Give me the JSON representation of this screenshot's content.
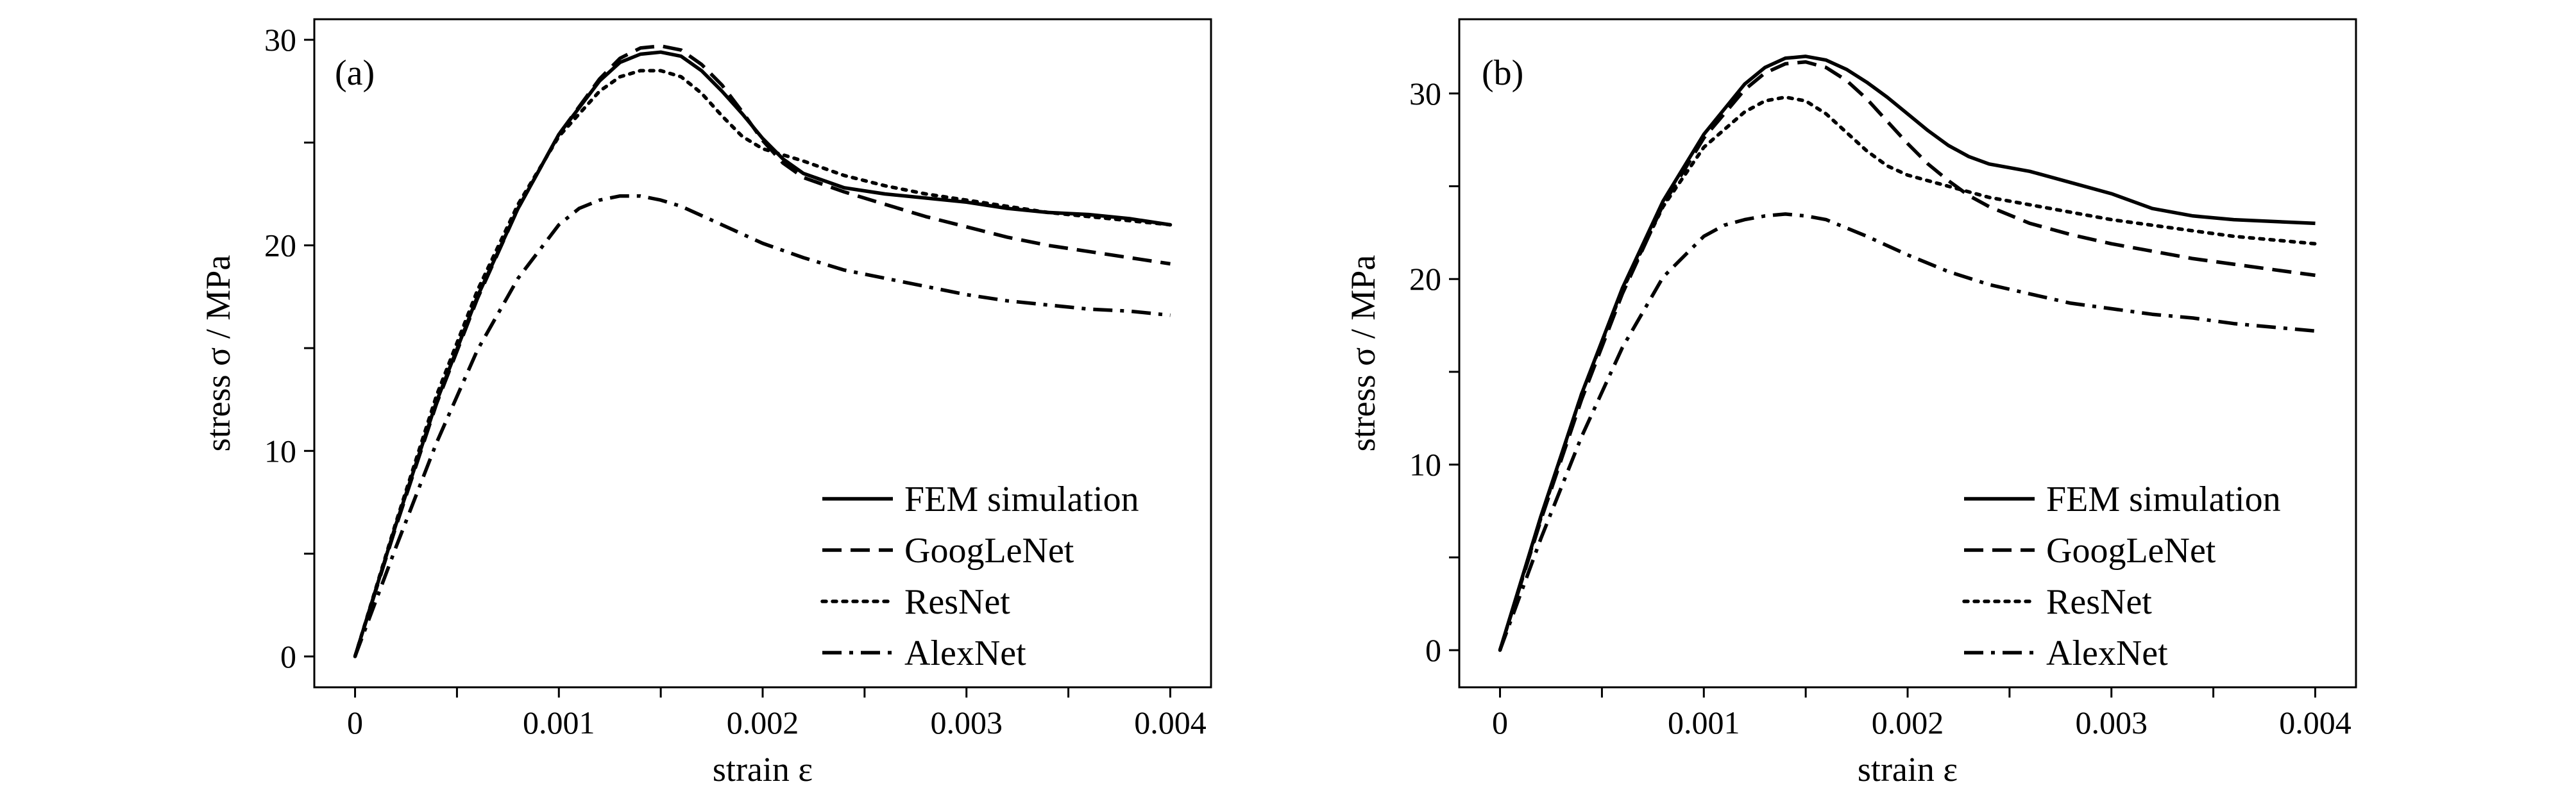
{
  "chart_data": [
    {
      "type": "line",
      "panel_label": "(a)",
      "xlabel": "strain ε",
      "ylabel": "stress σ / MPa",
      "xlim": [
        -0.0002,
        0.0042
      ],
      "ylim": [
        -1.5,
        31
      ],
      "xticks": [
        0,
        0.0005,
        0.001,
        0.0015,
        0.002,
        0.0025,
        0.003,
        0.0035,
        0.004
      ],
      "xtick_labels": [
        "0",
        "",
        "0.001",
        "",
        "0.002",
        "",
        "0.003",
        "",
        "0.004"
      ],
      "yticks": [
        0,
        5,
        10,
        15,
        20,
        25,
        30
      ],
      "ytick_labels": [
        "0",
        "",
        "10",
        "",
        "20",
        "",
        "30"
      ],
      "grid": false,
      "legend_position": "bottom-right",
      "series": [
        {
          "name": "FEM simulation",
          "style": "solid",
          "x": [
            0,
            0.0002,
            0.0004,
            0.0006,
            0.0008,
            0.001,
            0.0012,
            0.0013,
            0.0014,
            0.0015,
            0.0016,
            0.0017,
            0.0018,
            0.0019,
            0.002,
            0.0021,
            0.0022,
            0.0024,
            0.0026,
            0.0028,
            0.003,
            0.0032,
            0.0034,
            0.0036,
            0.0038,
            0.004
          ],
          "y": [
            0,
            6.4,
            12.4,
            17.5,
            21.8,
            25.4,
            28,
            28.9,
            29.3,
            29.4,
            29.2,
            28.5,
            27.5,
            26.4,
            25.2,
            24.2,
            23.5,
            22.8,
            22.5,
            22.3,
            22.1,
            21.8,
            21.6,
            21.5,
            21.3,
            21
          ]
        },
        {
          "name": "GoogLeNet",
          "style": "dashed",
          "x": [
            0,
            0.0002,
            0.0004,
            0.0006,
            0.0008,
            0.001,
            0.0012,
            0.0013,
            0.0014,
            0.0015,
            0.0016,
            0.0017,
            0.0018,
            0.0019,
            0.002,
            0.0021,
            0.0022,
            0.0024,
            0.0026,
            0.0028,
            0.003,
            0.0032,
            0.0034,
            0.0036,
            0.0038,
            0.004
          ],
          "y": [
            0,
            6.3,
            12.3,
            17.4,
            21.8,
            25.4,
            28.1,
            29.1,
            29.6,
            29.7,
            29.5,
            28.8,
            27.8,
            26.5,
            25.1,
            24,
            23.3,
            22.6,
            22,
            21.4,
            20.9,
            20.4,
            20,
            19.7,
            19.4,
            19.1
          ]
        },
        {
          "name": "ResNet",
          "style": "dotted",
          "x": [
            0,
            0.0002,
            0.0004,
            0.0006,
            0.0008,
            0.001,
            0.0012,
            0.0013,
            0.0014,
            0.0015,
            0.0016,
            0.0017,
            0.0018,
            0.0019,
            0.002,
            0.0021,
            0.0022,
            0.0024,
            0.0026,
            0.0028,
            0.003,
            0.0032,
            0.0034,
            0.0036,
            0.0038,
            0.004
          ],
          "y": [
            0,
            6.5,
            12.7,
            17.8,
            22,
            25.3,
            27.5,
            28.2,
            28.5,
            28.5,
            28.2,
            27.4,
            26.3,
            25.3,
            24.7,
            24.4,
            24.1,
            23.4,
            22.9,
            22.5,
            22.2,
            21.9,
            21.6,
            21.4,
            21.2,
            21
          ]
        },
        {
          "name": "AlexNet",
          "style": "dashdot",
          "x": [
            0,
            0.0002,
            0.0004,
            0.0006,
            0.0008,
            0.001,
            0.0011,
            0.0012,
            0.0013,
            0.0014,
            0.0015,
            0.0016,
            0.0018,
            0.002,
            0.0022,
            0.0024,
            0.0026,
            0.0028,
            0.003,
            0.0032,
            0.0034,
            0.0036,
            0.0038,
            0.004
          ],
          "y": [
            0,
            5.3,
            10.4,
            14.9,
            18.4,
            21,
            21.8,
            22.2,
            22.4,
            22.4,
            22.2,
            21.9,
            21,
            20.1,
            19.4,
            18.8,
            18.4,
            18,
            17.6,
            17.3,
            17.1,
            16.9,
            16.8,
            16.6
          ]
        }
      ]
    },
    {
      "type": "line",
      "panel_label": "(b)",
      "xlabel": "strain ε",
      "ylabel": "stress σ / MPa",
      "xlim": [
        -0.0002,
        0.0042
      ],
      "ylim": [
        -2,
        34
      ],
      "xticks": [
        0,
        0.0005,
        0.001,
        0.0015,
        0.002,
        0.0025,
        0.003,
        0.0035,
        0.004
      ],
      "xtick_labels": [
        "0",
        "",
        "0.001",
        "",
        "0.002",
        "",
        "0.003",
        "",
        "0.004"
      ],
      "yticks": [
        0,
        5,
        10,
        15,
        20,
        25,
        30
      ],
      "ytick_labels": [
        "0",
        "",
        "10",
        "",
        "20",
        "",
        "30"
      ],
      "grid": false,
      "legend_position": "bottom-right",
      "series": [
        {
          "name": "FEM simulation",
          "style": "solid",
          "x": [
            0,
            0.0002,
            0.0004,
            0.0006,
            0.0008,
            0.001,
            0.0012,
            0.0013,
            0.0014,
            0.0015,
            0.0016,
            0.0017,
            0.0018,
            0.0019,
            0.002,
            0.0021,
            0.0022,
            0.0023,
            0.0024,
            0.0026,
            0.0028,
            0.003,
            0.0032,
            0.0034,
            0.0036,
            0.0038,
            0.004
          ],
          "y": [
            0,
            7.2,
            13.8,
            19.5,
            24.2,
            27.8,
            30.5,
            31.4,
            31.9,
            32,
            31.8,
            31.3,
            30.6,
            29.8,
            28.9,
            28,
            27.2,
            26.6,
            26.2,
            25.8,
            25.2,
            24.6,
            23.8,
            23.4,
            23.2,
            23.1,
            23
          ]
        },
        {
          "name": "GoogLeNet",
          "style": "dashed",
          "x": [
            0,
            0.0002,
            0.0004,
            0.0006,
            0.0008,
            0.001,
            0.0012,
            0.0013,
            0.0014,
            0.0015,
            0.0016,
            0.0017,
            0.0018,
            0.0019,
            0.002,
            0.0021,
            0.0022,
            0.0023,
            0.0024,
            0.0026,
            0.0028,
            0.003,
            0.0032,
            0.0034,
            0.0036,
            0.0038,
            0.004
          ],
          "y": [
            0,
            7,
            13.5,
            19.2,
            24,
            27.6,
            30.2,
            31.1,
            31.6,
            31.7,
            31.4,
            30.7,
            29.7,
            28.5,
            27.3,
            26.2,
            25.3,
            24.5,
            23.9,
            23,
            22.4,
            21.9,
            21.5,
            21.1,
            20.8,
            20.5,
            20.2
          ]
        },
        {
          "name": "ResNet",
          "style": "dotted",
          "x": [
            0,
            0.0002,
            0.0004,
            0.0006,
            0.0008,
            0.001,
            0.0012,
            0.0013,
            0.0014,
            0.0015,
            0.0016,
            0.0017,
            0.0018,
            0.0019,
            0.002,
            0.0022,
            0.0024,
            0.0026,
            0.0028,
            0.003,
            0.0032,
            0.0034,
            0.0036,
            0.0038,
            0.004
          ],
          "y": [
            0,
            7.1,
            13.8,
            19.4,
            23.9,
            27.1,
            29,
            29.6,
            29.8,
            29.6,
            28.9,
            27.9,
            26.9,
            26.1,
            25.6,
            25,
            24.4,
            24,
            23.6,
            23.2,
            22.9,
            22.6,
            22.3,
            22.1,
            21.9
          ]
        },
        {
          "name": "AlexNet",
          "style": "dashdot",
          "x": [
            0,
            0.0002,
            0.0004,
            0.0006,
            0.0008,
            0.001,
            0.0011,
            0.0012,
            0.0013,
            0.0014,
            0.0015,
            0.0016,
            0.0018,
            0.002,
            0.0022,
            0.0024,
            0.0026,
            0.0028,
            0.003,
            0.0032,
            0.0034,
            0.0036,
            0.0038,
            0.004
          ],
          "y": [
            0,
            6,
            11.5,
            16.3,
            20.1,
            22.3,
            22.9,
            23.2,
            23.4,
            23.5,
            23.4,
            23.2,
            22.3,
            21.3,
            20.4,
            19.7,
            19.2,
            18.7,
            18.4,
            18.1,
            17.9,
            17.6,
            17.4,
            17.2
          ]
        }
      ]
    }
  ]
}
